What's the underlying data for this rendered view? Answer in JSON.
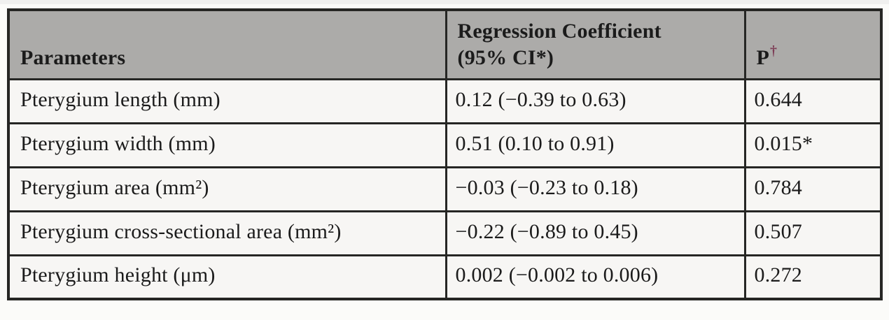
{
  "table": {
    "header": {
      "parameters": "Parameters",
      "coefficient_line1": "Regression Coefficient",
      "coefficient_line2": "(95% CI*)",
      "p_label": "P",
      "p_sup": "†"
    },
    "rows": [
      {
        "parameter": "Pterygium length (mm)",
        "coefficient": "0.12 (−0.39 to 0.63)",
        "p": "0.644"
      },
      {
        "parameter": "Pterygium width (mm)",
        "coefficient": "0.51 (0.10 to 0.91)",
        "p": "0.015*"
      },
      {
        "parameter": "Pterygium area (mm²)",
        "coefficient": "−0.03 (−0.23 to 0.18)",
        "p": "0.784"
      },
      {
        "parameter": "Pterygium cross-sectional area (mm²)",
        "coefficient": "−0.22 (−0.89 to 0.45)",
        "p": "0.507"
      },
      {
        "parameter": "Pterygium height (μm)",
        "coefficient": "0.002 (−0.002 to 0.006)",
        "p": "0.272"
      }
    ]
  },
  "colors": {
    "header_background": "#acaba9",
    "row_background": "#f7f6f4",
    "border": "#262624",
    "text": "#1b1b1b",
    "dagger_accent": "#7d3c55",
    "page_background": "#fbfbf9"
  }
}
